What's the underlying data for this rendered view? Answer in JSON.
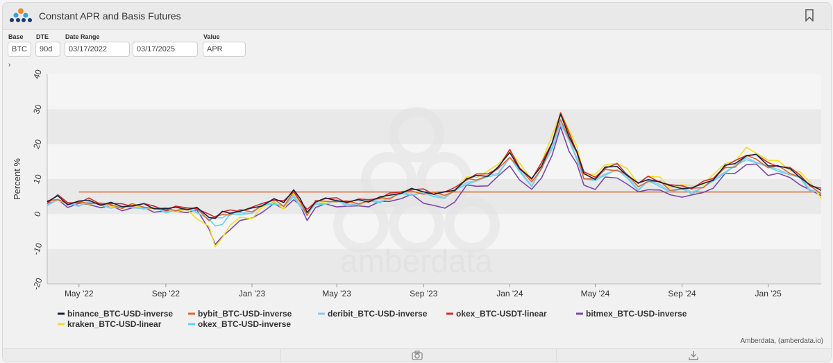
{
  "header": {
    "title": "Constant APR and Basis Futures"
  },
  "controls": {
    "base_label": "Base",
    "base_value": "BTC",
    "dte_label": "DTE",
    "dte_value": "90d",
    "date_range_label": "Date Range",
    "start_date": "03/17/2022",
    "end_date": "03/17/2025",
    "value_label": "Value",
    "value_value": "APR"
  },
  "watermark": "amberdata",
  "credit": "Amberdata, (amberdata.io)",
  "colors": {
    "reference_line": "#e0662e",
    "band_light": "#f5f5f5",
    "band_dark": "#e9e9e9"
  },
  "chart_data": {
    "type": "line",
    "xlabel": "",
    "ylabel": "Percent %",
    "ylim": [
      -20,
      40
    ],
    "yticks": [
      -20,
      -10,
      0,
      10,
      20,
      30,
      40
    ],
    "xlim": [
      "2022-03-17",
      "2025-03-17"
    ],
    "xticks": [
      {
        "label": "May '22",
        "date": "2022-05-01"
      },
      {
        "label": "Sep '22",
        "date": "2022-09-01"
      },
      {
        "label": "Jan '23",
        "date": "2023-01-01"
      },
      {
        "label": "May '23",
        "date": "2023-05-01"
      },
      {
        "label": "Sep '23",
        "date": "2023-09-01"
      },
      {
        "label": "Jan '24",
        "date": "2024-01-01"
      },
      {
        "label": "May '24",
        "date": "2024-05-01"
      },
      {
        "label": "Sep '24",
        "date": "2024-09-01"
      },
      {
        "label": "Jan '25",
        "date": "2025-01-01"
      }
    ],
    "reference_line": {
      "value": 6.3,
      "x_start": "2022-05-01",
      "x_end": "2025-03-17"
    },
    "x": [
      "2022-03-17",
      "2022-04-01",
      "2022-04-15",
      "2022-05-01",
      "2022-05-15",
      "2022-06-01",
      "2022-06-15",
      "2022-07-01",
      "2022-07-15",
      "2022-08-01",
      "2022-08-15",
      "2022-09-01",
      "2022-09-15",
      "2022-10-01",
      "2022-10-15",
      "2022-11-01",
      "2022-11-10",
      "2022-11-20",
      "2022-12-01",
      "2022-12-15",
      "2023-01-01",
      "2023-01-15",
      "2023-02-01",
      "2023-02-15",
      "2023-03-01",
      "2023-03-10",
      "2023-03-20",
      "2023-04-01",
      "2023-04-15",
      "2023-05-01",
      "2023-05-15",
      "2023-06-01",
      "2023-06-15",
      "2023-07-01",
      "2023-07-15",
      "2023-08-01",
      "2023-08-15",
      "2023-09-01",
      "2023-09-15",
      "2023-10-01",
      "2023-10-15",
      "2023-11-01",
      "2023-11-15",
      "2023-12-01",
      "2023-12-15",
      "2024-01-01",
      "2024-01-15",
      "2024-02-01",
      "2024-02-15",
      "2024-03-01",
      "2024-03-13",
      "2024-03-25",
      "2024-04-05",
      "2024-04-15",
      "2024-05-01",
      "2024-05-15",
      "2024-06-01",
      "2024-06-15",
      "2024-07-01",
      "2024-07-15",
      "2024-08-01",
      "2024-08-15",
      "2024-09-01",
      "2024-09-15",
      "2024-10-01",
      "2024-10-15",
      "2024-11-01",
      "2024-11-15",
      "2024-12-01",
      "2024-12-15",
      "2025-01-01",
      "2025-01-15",
      "2025-02-01",
      "2025-02-15",
      "2025-03-01",
      "2025-03-17"
    ],
    "series": [
      {
        "name": "binance_BTC-USD-inverse",
        "color": "#14233f",
        "values": [
          3.5,
          4.8,
          3.2,
          3.4,
          3.8,
          3.0,
          2.8,
          2.3,
          2.6,
          2.4,
          2.0,
          1.4,
          1.6,
          1.8,
          1.5,
          -1.0,
          -0.8,
          0.2,
          0.5,
          1.0,
          1.2,
          2.8,
          4.2,
          3.0,
          7.5,
          4.0,
          0.5,
          3.8,
          4.0,
          4.2,
          3.5,
          3.6,
          4.0,
          4.6,
          5.2,
          6.5,
          6.8,
          6.5,
          6.0,
          5.8,
          7.2,
          10.0,
          10.6,
          11.4,
          13.0,
          17.5,
          13.4,
          9.6,
          14.0,
          20.6,
          28.0,
          22.7,
          17.8,
          11.2,
          10.5,
          13.0,
          13.6,
          11.5,
          8.3,
          10.2,
          9.3,
          7.6,
          7.8,
          7.3,
          8.5,
          10.2,
          13.5,
          14.5,
          17.0,
          16.5,
          14.2,
          13.8,
          12.5,
          11.0,
          8.1,
          6.6
        ]
      },
      {
        "name": "bybit_BTC-USD-inverse",
        "color": "#e0662e",
        "values": [
          3.2,
          4.6,
          3.0,
          3.1,
          3.6,
          2.8,
          2.6,
          2.1,
          2.4,
          2.2,
          1.8,
          1.2,
          1.4,
          1.6,
          1.3,
          -1.3,
          -1.1,
          -0.2,
          0.2,
          0.7,
          0.9,
          2.5,
          3.8,
          2.7,
          6.2,
          3.3,
          0.2,
          3.4,
          3.7,
          3.9,
          3.2,
          3.3,
          3.8,
          4.3,
          4.9,
          6.1,
          6.4,
          6.2,
          5.7,
          5.5,
          6.8,
          9.6,
          10.2,
          10.9,
          12.5,
          16.8,
          12.8,
          9.1,
          13.4,
          19.8,
          27.2,
          21.8,
          17.0,
          10.6,
          9.9,
          12.4,
          13.0,
          11.0,
          7.8,
          9.7,
          8.8,
          7.1,
          7.3,
          6.9,
          8.1,
          9.7,
          13.0,
          14.0,
          16.3,
          15.8,
          13.6,
          13.3,
          12.0,
          10.6,
          7.7,
          6.3
        ]
      },
      {
        "name": "deribit_BTC-USD-inverse",
        "color": "#8ec8f0",
        "values": [
          2.9,
          4.3,
          2.7,
          2.9,
          3.3,
          2.5,
          2.3,
          1.8,
          2.1,
          1.9,
          1.5,
          0.9,
          1.1,
          1.3,
          1.0,
          -1.6,
          -1.4,
          -0.5,
          -0.1,
          0.4,
          0.6,
          2.2,
          3.5,
          2.4,
          5.0,
          3.0,
          -0.2,
          3.1,
          3.4,
          3.6,
          2.9,
          3.0,
          3.5,
          4.0,
          4.6,
          5.8,
          6.1,
          5.9,
          5.4,
          5.2,
          6.5,
          9.2,
          9.8,
          10.5,
          12.1,
          16.2,
          12.3,
          8.7,
          12.9,
          19.2,
          26.5,
          21.0,
          16.4,
          10.2,
          9.5,
          12.0,
          12.6,
          10.6,
          7.5,
          9.3,
          8.4,
          6.8,
          7.0,
          6.6,
          7.8,
          9.4,
          12.6,
          13.6,
          15.9,
          15.4,
          13.2,
          12.9,
          11.6,
          10.2,
          7.4,
          6.1
        ]
      },
      {
        "name": "okex_BTC-USDT-linear",
        "color": "#d62a2a",
        "values": [
          3.6,
          5.0,
          3.4,
          3.5,
          4.0,
          3.2,
          3.0,
          2.5,
          2.8,
          2.6,
          2.2,
          1.5,
          1.7,
          2.0,
          1.7,
          -0.6,
          -0.4,
          0.5,
          0.8,
          1.3,
          1.5,
          3.0,
          4.4,
          3.2,
          6.8,
          3.8,
          0.8,
          4.0,
          4.2,
          4.4,
          3.7,
          3.8,
          4.2,
          4.8,
          5.4,
          6.7,
          7.0,
          6.7,
          6.2,
          6.0,
          7.4,
          10.3,
          10.9,
          11.7,
          13.3,
          17.9,
          13.7,
          9.9,
          14.3,
          21.0,
          28.6,
          23.2,
          18.2,
          11.5,
          10.8,
          13.3,
          13.9,
          11.8,
          8.6,
          10.5,
          9.6,
          7.9,
          8.1,
          7.6,
          8.8,
          10.5,
          13.8,
          14.8,
          17.3,
          16.8,
          14.5,
          14.1,
          12.8,
          11.3,
          8.4,
          6.8
        ]
      },
      {
        "name": "bitmex_BTC-USD-inverse",
        "color": "#7a45b0",
        "values": [
          2.6,
          4.0,
          2.4,
          2.5,
          2.9,
          2.1,
          1.9,
          1.4,
          1.7,
          1.5,
          1.1,
          0.5,
          0.7,
          0.9,
          0.6,
          -4.0,
          -8.5,
          -7.0,
          -4.0,
          -2.0,
          -1.5,
          1.0,
          2.5,
          1.5,
          4.5,
          2.0,
          -1.5,
          2.0,
          2.4,
          2.6,
          2.0,
          2.1,
          2.6,
          3.1,
          3.7,
          4.8,
          5.1,
          3.5,
          2.5,
          1.2,
          4.0,
          8.0,
          7.8,
          8.6,
          10.2,
          14.0,
          10.0,
          6.5,
          10.8,
          16.8,
          24.5,
          18.5,
          14.0,
          8.2,
          7.5,
          10.0,
          10.6,
          8.8,
          5.8,
          7.5,
          6.7,
          5.2,
          5.4,
          5.0,
          6.2,
          7.8,
          11.0,
          12.0,
          14.2,
          13.8,
          11.6,
          11.4,
          10.2,
          8.9,
          6.4,
          5.4
        ]
      },
      {
        "name": "kraken_BTC-USD-linear",
        "color": "#f0e020",
        "values": [
          3.0,
          4.4,
          2.8,
          3.0,
          3.4,
          2.6,
          2.4,
          1.9,
          2.2,
          2.0,
          1.6,
          1.0,
          1.2,
          1.0,
          -1.5,
          -3.0,
          -10.0,
          -6.5,
          -3.0,
          -1.5,
          -0.8,
          1.8,
          3.2,
          2.0,
          5.5,
          3.2,
          0.0,
          3.2,
          3.5,
          3.7,
          3.0,
          3.1,
          3.6,
          4.1,
          4.7,
          6.0,
          6.6,
          6.3,
          5.8,
          5.6,
          7.0,
          10.2,
          11.0,
          12.0,
          14.0,
          18.5,
          14.0,
          10.0,
          15.0,
          22.0,
          29.5,
          24.0,
          19.0,
          12.0,
          11.0,
          14.0,
          15.0,
          12.5,
          9.0,
          11.0,
          10.0,
          8.0,
          8.2,
          7.8,
          9.0,
          10.8,
          14.5,
          15.5,
          18.5,
          17.8,
          15.5,
          14.8,
          13.0,
          11.8,
          8.8,
          5.0
        ]
      },
      {
        "name": "okex_BTC-USD-inverse",
        "color": "#5cd6e8",
        "values": [
          2.8,
          4.2,
          2.6,
          2.8,
          3.2,
          2.4,
          2.2,
          1.7,
          2.0,
          1.8,
          1.4,
          0.8,
          1.0,
          1.2,
          0.9,
          -1.8,
          -3.5,
          -2.5,
          -0.6,
          0.2,
          0.4,
          2.0,
          3.3,
          2.2,
          4.6,
          2.7,
          -0.5,
          2.9,
          3.2,
          3.4,
          2.7,
          2.8,
          3.3,
          3.8,
          4.4,
          5.6,
          5.9,
          5.6,
          5.1,
          4.9,
          6.2,
          8.9,
          9.5,
          10.2,
          11.8,
          15.8,
          12.0,
          8.4,
          12.5,
          18.8,
          26.0,
          20.5,
          16.0,
          9.9,
          9.2,
          11.7,
          12.3,
          10.3,
          7.2,
          9.0,
          8.1,
          6.5,
          6.7,
          6.3,
          7.5,
          9.1,
          12.3,
          13.3,
          15.6,
          15.1,
          12.9,
          12.6,
          11.3,
          9.9,
          7.1,
          5.9
        ]
      }
    ],
    "legend_position": "bottom"
  }
}
